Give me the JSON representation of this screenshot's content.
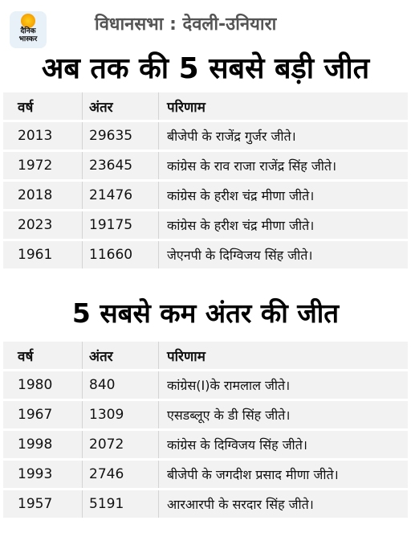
{
  "header": {
    "logo_line1": "दैनिक",
    "logo_line2": "भास्कर",
    "constituency": "विधानसभा : देवली-उनियारा"
  },
  "section1": {
    "title": "अब तक की 5 सबसे बड़ी जीत",
    "columns": [
      "वर्ष",
      "अंतर",
      "परिणाम"
    ],
    "rows": [
      {
        "year": "2013",
        "margin": "29635",
        "result": "बीजेपी के राजेंद्र गुर्जर जीते।"
      },
      {
        "year": "1972",
        "margin": "23645",
        "result": "कांग्रेस के राव राजा राजेंद्र सिंह जीते।"
      },
      {
        "year": "2018",
        "margin": "21476",
        "result": "कांग्रेस के हरीश चंद्र मीणा जीते।"
      },
      {
        "year": "2023",
        "margin": "19175",
        "result": "कांग्रेस के हरीश चंद्र मीणा जीते।"
      },
      {
        "year": "1961",
        "margin": "11660",
        "result": "जेएनपी के दिग्विजय सिंह जीते।"
      }
    ]
  },
  "section2": {
    "title": "5 सबसे कम अंतर की जीत",
    "columns": [
      "वर्ष",
      "अंतर",
      "परिणाम"
    ],
    "rows": [
      {
        "year": "1980",
        "margin": "840",
        "result": "कांग्रेस(I)के रामलाल जीते।"
      },
      {
        "year": "1967",
        "margin": "1309",
        "result": "एसडब्लूए के डी सिंह जीते।"
      },
      {
        "year": "1998",
        "margin": "2072",
        "result": "कांग्रेस के दिग्विजय सिंह जीते।"
      },
      {
        "year": "1993",
        "margin": "2746",
        "result": "बीजेपी के जगदीश प्रसाद मीणा जीते।"
      },
      {
        "year": "1957",
        "margin": "5191",
        "result": "आरआरपी के सरदार सिंह जीते।"
      }
    ]
  }
}
